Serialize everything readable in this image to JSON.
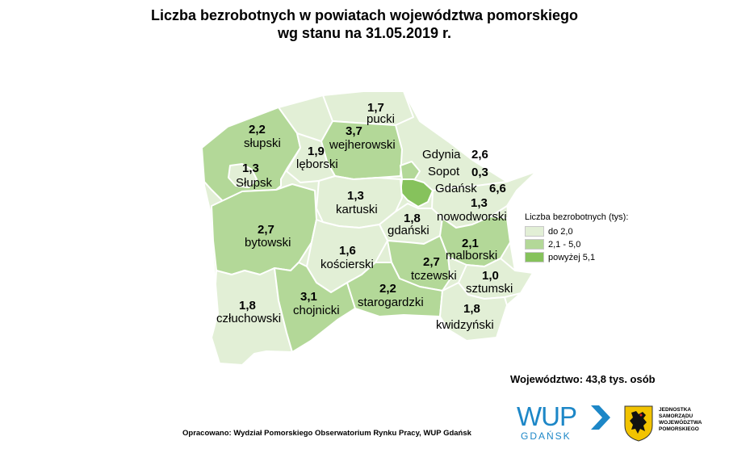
{
  "title": {
    "line1": "Liczba bezrobotnych w powiatach województwa pomorskiego",
    "line2": "wg stanu na 31.05.2019 r."
  },
  "colors": {
    "lvl1": "#e2efd6",
    "lvl2": "#b3d898",
    "lvl3": "#86c25c"
  },
  "districts": {
    "pucki": {
      "name": "pucki",
      "value": "1,7"
    },
    "wejherowski": {
      "name": "wejherowski",
      "value": "3,7"
    },
    "slupski": {
      "name": "słupski",
      "value": "2,2"
    },
    "slupsk": {
      "name": "Słupsk",
      "value": "1,3"
    },
    "leborski": {
      "name": "lęborski",
      "value": "1,9"
    },
    "gdynia": {
      "name": "Gdynia",
      "value": "2,6"
    },
    "sopot": {
      "name": "Sopot",
      "value": "0,3"
    },
    "gdansk": {
      "name": "Gdańsk",
      "value": "6,6"
    },
    "kartuski": {
      "name": "kartuski",
      "value": "1,3"
    },
    "nowodworski": {
      "name": "nowodworski",
      "value": "1,3"
    },
    "gdanski": {
      "name": "gdański",
      "value": "1,8"
    },
    "bytowski": {
      "name": "bytowski",
      "value": "2,7"
    },
    "koscierski": {
      "name": "kościerski",
      "value": "1,6"
    },
    "malborski": {
      "name": "malborski",
      "value": "2,1"
    },
    "tczewski": {
      "name": "tczewski",
      "value": "2,7"
    },
    "sztumski": {
      "name": "sztumski",
      "value": "1,0"
    },
    "czluchowski": {
      "name": "człuchowski",
      "value": "1,8"
    },
    "chojnicki": {
      "name": "chojnicki",
      "value": "3,1"
    },
    "starogardzki": {
      "name": "starogardzki",
      "value": "2,2"
    },
    "kwidzynski": {
      "name": "kwidzyński",
      "value": "1,8"
    }
  },
  "legend": {
    "title": "Liczba bezrobotnych (tys):",
    "items": [
      {
        "label": "do 2,0",
        "color": "#e2efd6"
      },
      {
        "label": "2,1 - 5,0",
        "color": "#b3d898"
      },
      {
        "label": "powyżej 5,1",
        "color": "#86c25c"
      }
    ]
  },
  "total": "Województwo: 43,8 tys. osób",
  "source": "Opracowano: Wydział Pomorskiego Obserwatorium Rynku Pracy, WUP Gdańsk",
  "logo_wup": {
    "text": "WUP",
    "sub": "GDAŃSK"
  },
  "logo_region": {
    "line1": "JEDNOSTKA",
    "line2": "SAMORZĄDU",
    "line3": "WOJEWÓDZTWA",
    "line4": "POMORSKIEGO"
  }
}
